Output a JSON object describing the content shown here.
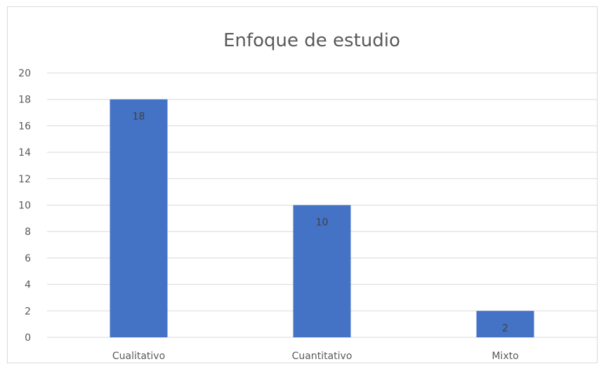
{
  "chart_data": {
    "type": "bar",
    "title": "Enfoque de estudio",
    "categories": [
      "Cualitativo",
      "Cuantitativo",
      "Mixto"
    ],
    "values": [
      18,
      10,
      2
    ],
    "ylim": [
      0,
      20
    ],
    "yticks": [
      0,
      2,
      4,
      6,
      8,
      10,
      12,
      14,
      16,
      18,
      20
    ],
    "xlabel": "",
    "ylabel": "",
    "grid": true,
    "legend": "none",
    "data_labels": [
      "18",
      "10",
      "2"
    ],
    "bar_color": "#4472c4",
    "gridline_color": "#d9d9d9",
    "text_color": "#595959"
  }
}
